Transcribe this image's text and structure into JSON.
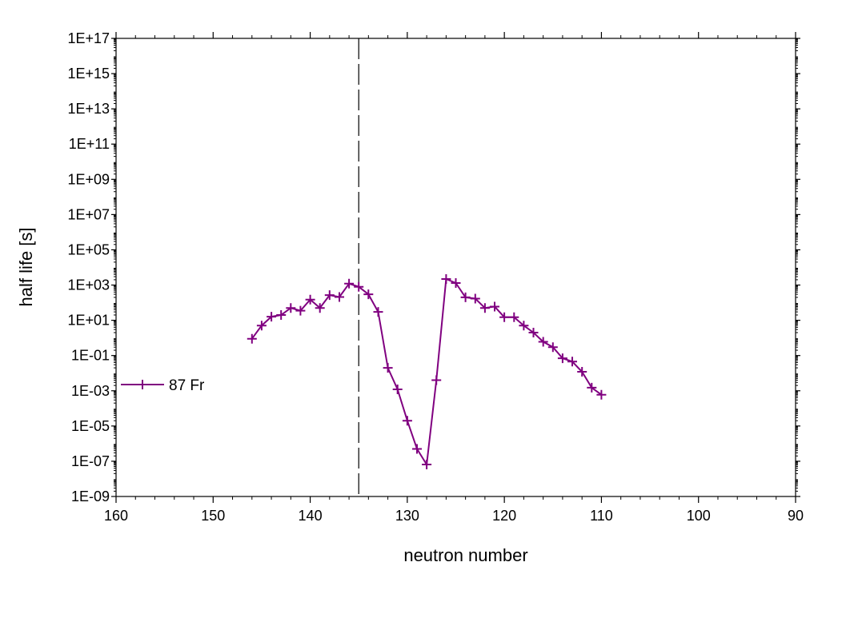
{
  "chart_data": {
    "type": "line",
    "xlabel": "neutron number",
    "ylabel": "half life [s]",
    "x_reversed": true,
    "xlim": [
      160,
      90
    ],
    "ylim_log10": [
      -9,
      17
    ],
    "y_scale": "log",
    "grid": false,
    "legend_placement": "left-middle",
    "x_ticks": [
      160,
      150,
      140,
      130,
      120,
      110,
      100,
      90
    ],
    "x_tick_labels": [
      "160",
      "150",
      "140",
      "130",
      "120",
      "110",
      "100",
      "90"
    ],
    "y_tick_exponents": [
      -9,
      -7,
      -5,
      -3,
      -1,
      1,
      3,
      5,
      7,
      9,
      11,
      13,
      15,
      17
    ],
    "y_tick_labels": [
      "1E-09",
      "1E-07",
      "1E-05",
      "1E-03",
      "1E-01",
      "1E+01",
      "1E+03",
      "1E+05",
      "1E+07",
      "1E+09",
      "1E+11",
      "1E+13",
      "1E+15",
      "1E+17"
    ],
    "reference_line_x": 135,
    "series": [
      {
        "name": "87 Fr",
        "color": "#800080",
        "marker": "plus",
        "x": [
          146,
          145,
          144,
          143,
          142,
          141,
          140,
          139,
          138,
          137,
          136,
          135,
          134,
          133,
          132,
          131,
          130,
          129,
          128,
          127,
          126,
          125,
          124,
          123,
          122,
          121,
          120,
          119,
          118,
          117,
          116,
          115,
          114,
          113,
          112,
          111,
          110
        ],
        "y": [
          0.9,
          5,
          16,
          20,
          50,
          35,
          150,
          50,
          270,
          210,
          1200,
          800,
          300,
          30,
          0.02,
          0.0012,
          2e-05,
          5e-07,
          6.5e-08,
          0.004,
          2200,
          1300,
          200,
          170,
          50,
          60,
          15,
          15,
          5,
          2,
          0.6,
          0.3,
          0.07,
          0.045,
          0.012,
          0.0015,
          0.0006
        ]
      }
    ]
  }
}
